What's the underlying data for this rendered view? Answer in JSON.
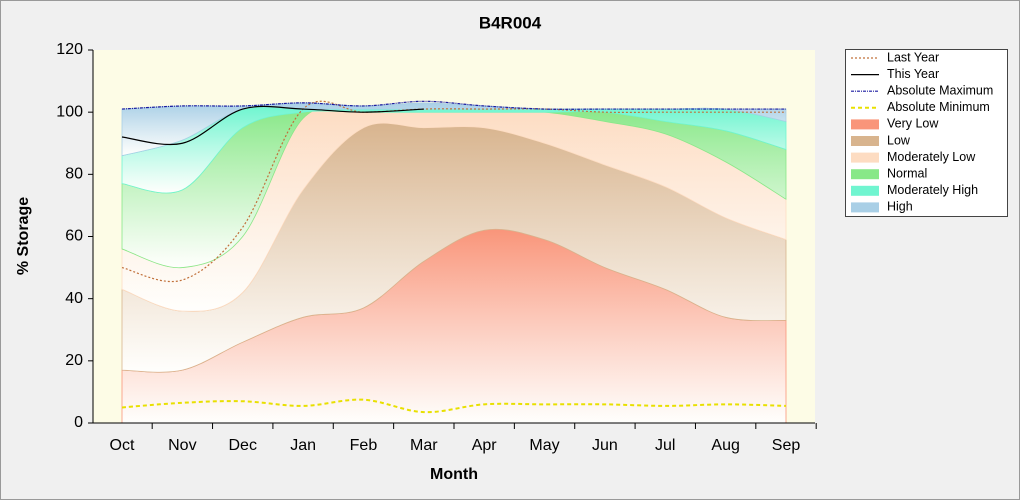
{
  "chart_data": {
    "type": "area-band",
    "title": "B4R004",
    "x_label": "Month",
    "y_label": "% Storage",
    "categories": [
      "Oct",
      "Nov",
      "Dec",
      "Jan",
      "Feb",
      "Mar",
      "Apr",
      "May",
      "Jun",
      "Jul",
      "Aug",
      "Sep"
    ],
    "ylim": [
      0,
      120
    ],
    "yticks": [
      0,
      20,
      40,
      60,
      80,
      100,
      120
    ],
    "legend": "right",
    "series": [
      {
        "name": "Last Year",
        "style": "dotted",
        "color": "#c0703a",
        "values": [
          50,
          46,
          63,
          101,
          100,
          101,
          101,
          101,
          100,
          100,
          100,
          100
        ]
      },
      {
        "name": "This Year",
        "style": "solid",
        "color": "#000000",
        "values": [
          92,
          90,
          101,
          101,
          100,
          101,
          null,
          null,
          null,
          null,
          null,
          null
        ]
      },
      {
        "name": "Absolute Maximum",
        "style": "dash-dot",
        "color": "#1a1aa0",
        "values": [
          101,
          102,
          102,
          103,
          102,
          103.5,
          102,
          101,
          101,
          101,
          101,
          101
        ]
      },
      {
        "name": "Absolute Minimum",
        "style": "dashed",
        "color": "#e8e000",
        "values": [
          5,
          6.5,
          7,
          5.5,
          7.5,
          3.5,
          6,
          6,
          6,
          5.5,
          6,
          5.5
        ]
      },
      {
        "name": "Very Low",
        "style": "band",
        "color": "#f9957a",
        "values": [
          17,
          17,
          26,
          34,
          37,
          52,
          62,
          59,
          50,
          43,
          34,
          33
        ]
      },
      {
        "name": "Low",
        "style": "band",
        "color": "#d8b48e",
        "values": [
          26,
          19,
          16,
          41,
          58,
          43,
          33,
          31,
          33,
          33,
          32,
          26
        ]
      },
      {
        "name": "Moderately Low",
        "style": "band",
        "color": "#fddcc2",
        "values": [
          13,
          14,
          18,
          23,
          5,
          5,
          5,
          10,
          14,
          17,
          18,
          13
        ]
      },
      {
        "name": "Normal",
        "style": "band",
        "color": "#88e888",
        "values": [
          21,
          25,
          35,
          2,
          0,
          0,
          0,
          0,
          3,
          4,
          10,
          16
        ]
      },
      {
        "name": "Moderately High",
        "style": "band",
        "color": "#70f5d0",
        "values": [
          9,
          16,
          6,
          1,
          1,
          1,
          1,
          1,
          1,
          4,
          7,
          9
        ]
      },
      {
        "name": "High",
        "style": "band",
        "color": "#a9cfe6",
        "values": [
          15,
          11,
          1,
          2,
          1,
          2,
          1,
          0,
          0,
          0,
          0,
          4
        ]
      }
    ]
  }
}
